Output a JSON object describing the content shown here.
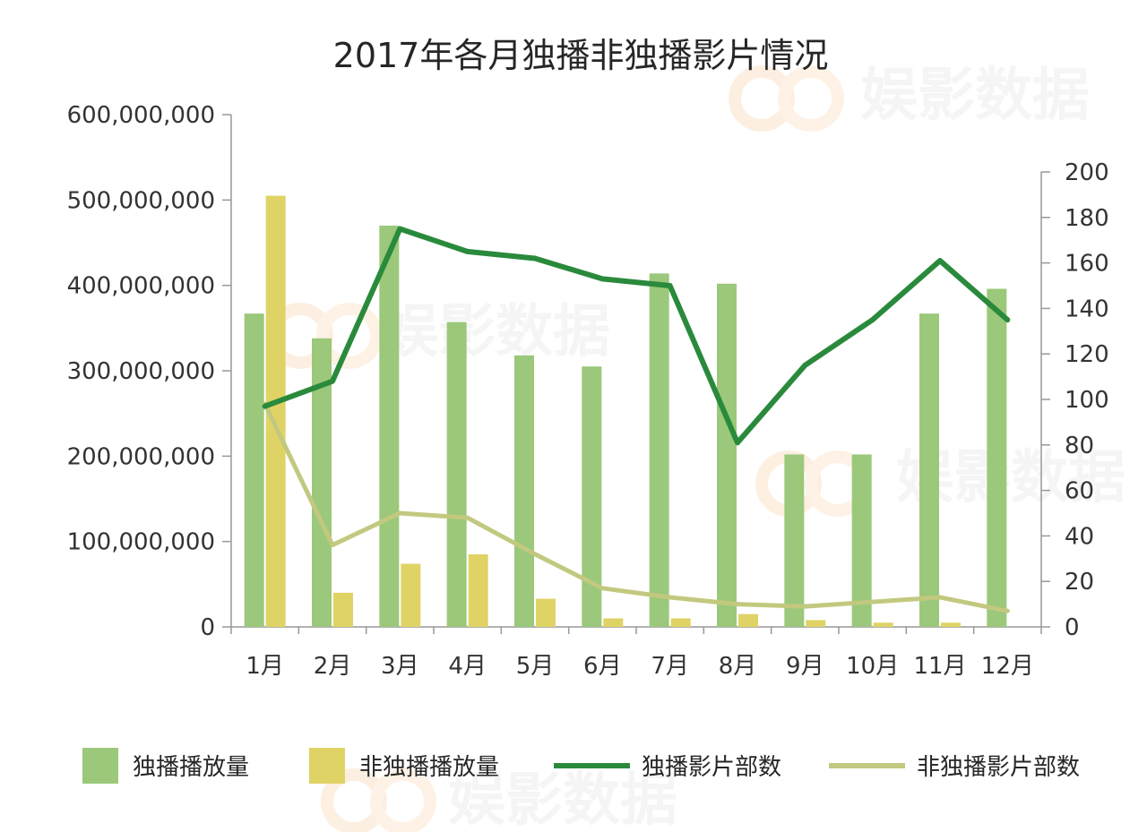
{
  "watermark": "娱影数据",
  "colors": {
    "exclusive_bar": "#9bc87a",
    "nonexclusive_bar": "#e0d366",
    "exclusive_line": "#2a8a3c",
    "nonexclusive_line": "#c2c97f",
    "axis": "#999999"
  },
  "chart_data": {
    "type": "bar",
    "title": "2017年各月独播非独播影片情况",
    "categories": [
      "1月",
      "2月",
      "3月",
      "4月",
      "5月",
      "6月",
      "7月",
      "8月",
      "9月",
      "10月",
      "11月",
      "12月"
    ],
    "left_axis": {
      "ylim": [
        0,
        600000000
      ],
      "ticks": [
        0,
        100000000,
        200000000,
        300000000,
        400000000,
        500000000,
        600000000
      ],
      "tick_labels": [
        "0",
        "100,000,000",
        "200,000,000",
        "300,000,000",
        "400,000,000",
        "500,000,000",
        "600,000,000"
      ]
    },
    "right_axis": {
      "ylim": [
        0,
        200
      ],
      "ticks": [
        0,
        20,
        40,
        60,
        80,
        100,
        120,
        140,
        160,
        180,
        200
      ],
      "tick_labels": [
        "0",
        "20",
        "40",
        "60",
        "80",
        "100",
        "120",
        "140",
        "160",
        "180",
        "200"
      ]
    },
    "series": [
      {
        "name": "独播播放量",
        "type": "bar",
        "axis": "left",
        "values": [
          367000000,
          338000000,
          470000000,
          357000000,
          318000000,
          305000000,
          414000000,
          402000000,
          202000000,
          202000000,
          367000000,
          396000000
        ]
      },
      {
        "name": "非独播播放量",
        "type": "bar",
        "axis": "left",
        "values": [
          505000000,
          40000000,
          74000000,
          85000000,
          33000000,
          10000000,
          10000000,
          15000000,
          8000000,
          5000000,
          5000000,
          0
        ]
      },
      {
        "name": "独播影片部数",
        "type": "line",
        "axis": "right",
        "values": [
          97,
          108,
          175,
          165,
          162,
          153,
          150,
          81,
          115,
          135,
          161,
          135
        ]
      },
      {
        "name": "非独播影片部数",
        "type": "line",
        "axis": "right",
        "values": [
          98,
          36,
          50,
          48,
          32,
          17,
          13,
          10,
          9,
          11,
          13,
          7
        ]
      }
    ],
    "grid": false,
    "legend_position": "bottom"
  }
}
